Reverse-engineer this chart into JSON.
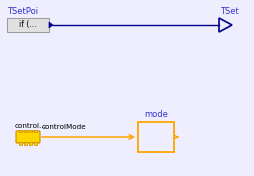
{
  "bg_color": "#eeeeff",
  "dark_blue": "#00008B",
  "blue": "#3333cc",
  "orange": "#FFA500",
  "block_bg": "#e0e0e0",
  "block_border": "#999999",
  "tsetpoi_label": "TSetPoi",
  "tsetpoi_block_text": "if (...",
  "tset_label": "TSet",
  "mode_label": "mode",
  "control_label": "control...",
  "controlmode_label": "controlMode",
  "chip_fill": "#FFD700",
  "chip_edge": "#cc8800"
}
